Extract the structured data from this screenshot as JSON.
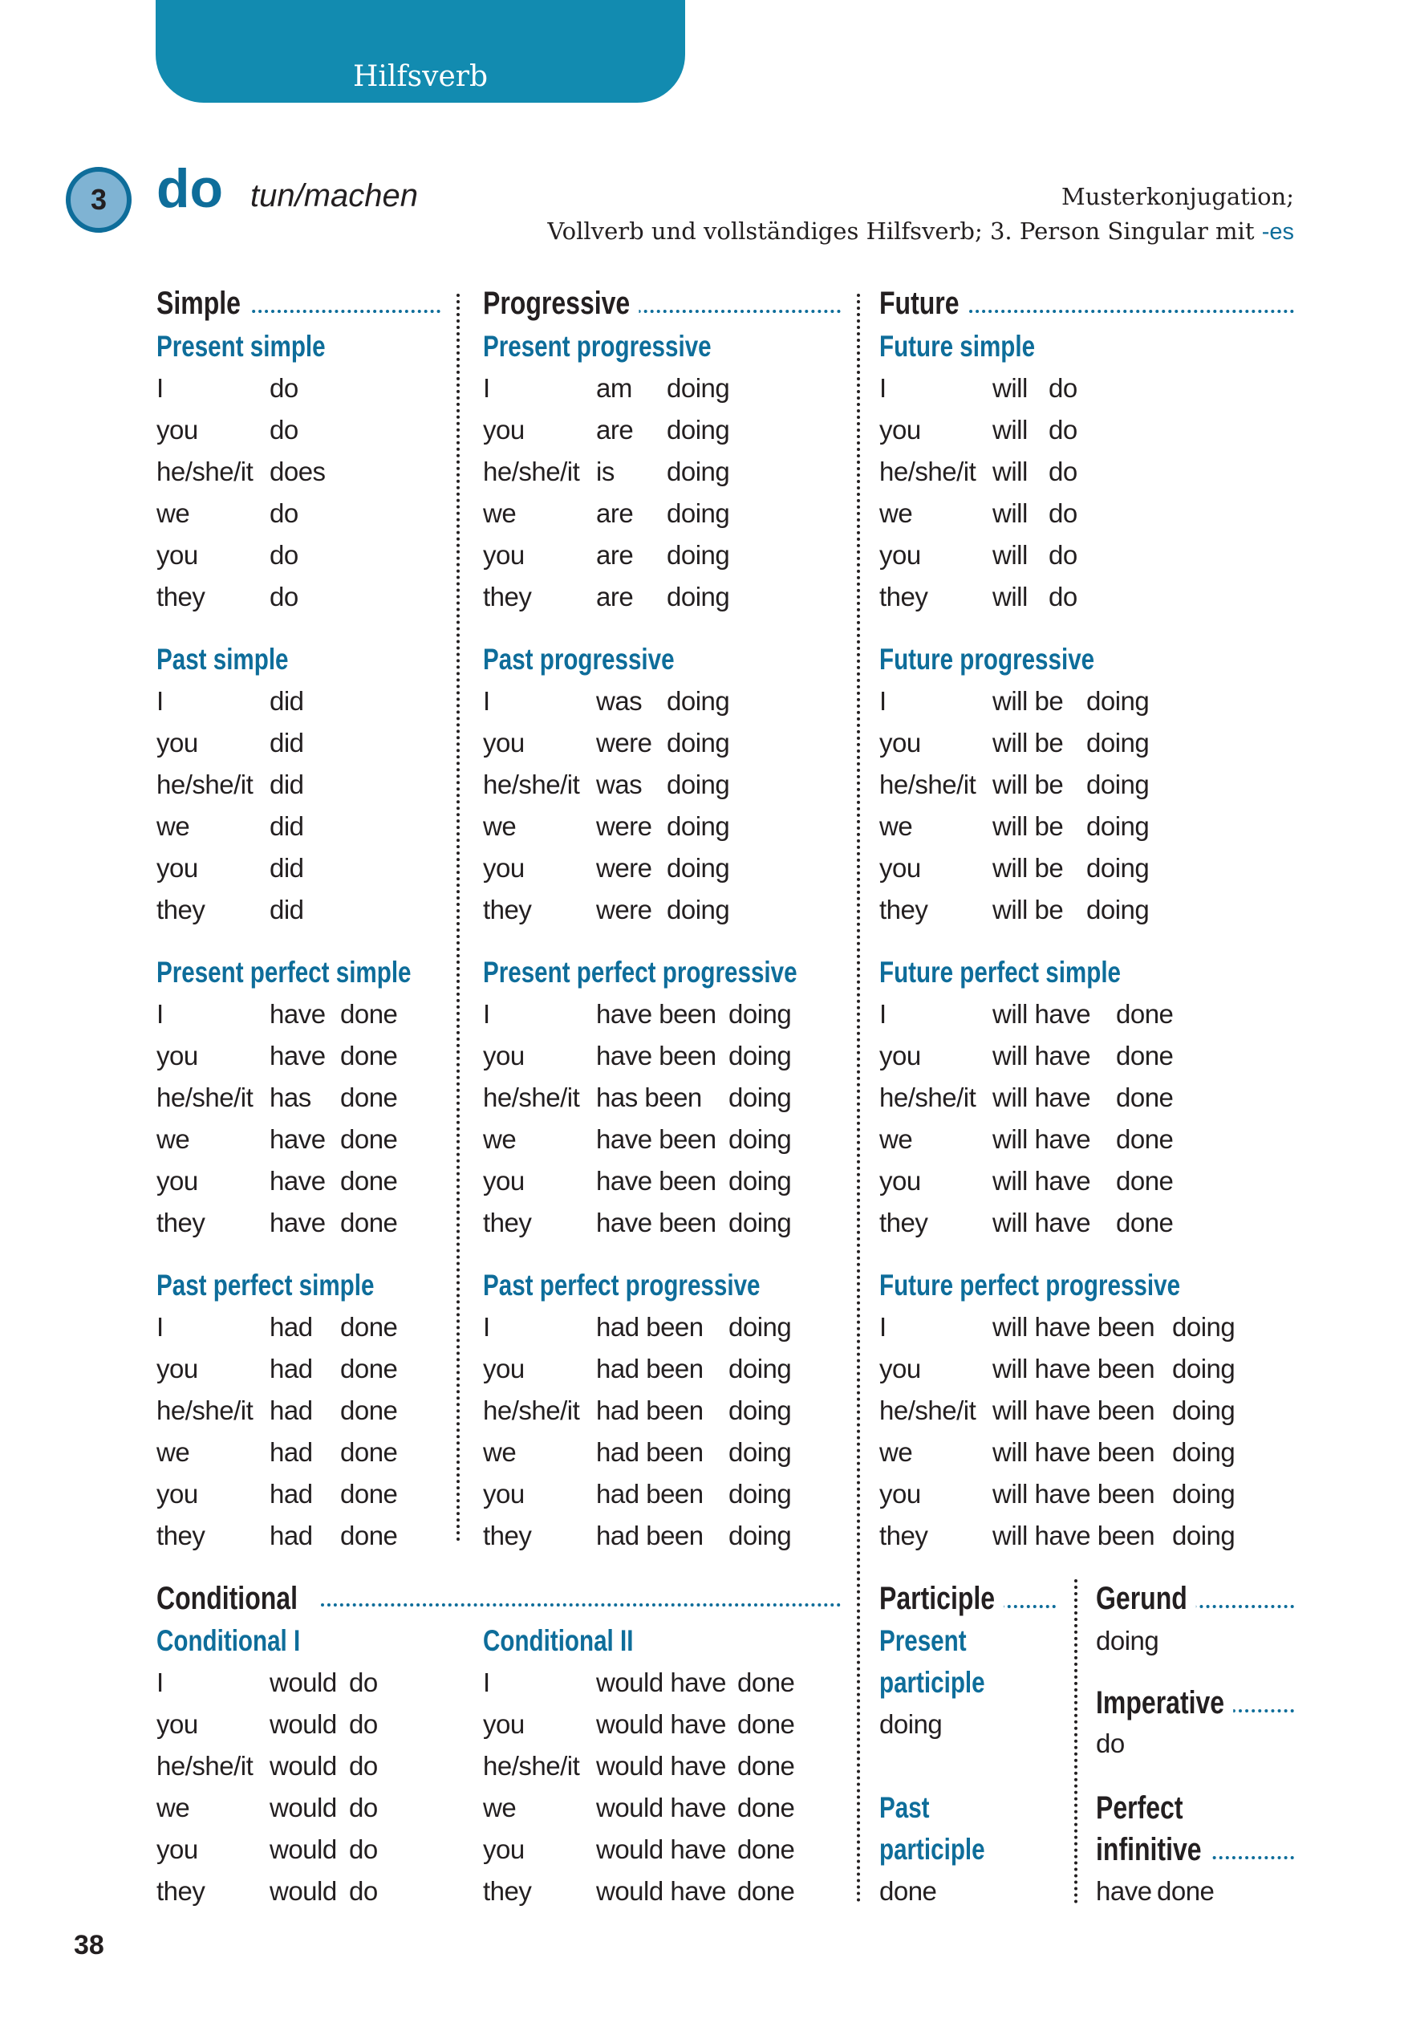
{
  "tab_label": "Hilfsverb",
  "entry": {
    "number": "3",
    "verb": "do",
    "translation": "tun/machen",
    "description_line1": "Musterkonjugation;",
    "description_line2": "Vollverb und vollständiges Hilfsverb; 3. Person Singular mit ",
    "description_suffix": "-es"
  },
  "colors": {
    "accent": "#128bb0",
    "text_blue": "#0e6d9a",
    "text": "#231f20"
  },
  "columns": [
    {
      "title": "Simple",
      "sections": [
        {
          "id": "present-simple",
          "heading": "Present simple",
          "rows": [
            {
              "cells": [
                "I",
                "do"
              ]
            },
            {
              "cells": [
                "you",
                "do"
              ]
            },
            {
              "cells": [
                "he/she/it",
                "does"
              ],
              "blue": [
                1
              ]
            },
            {
              "cells": [
                "we",
                "do"
              ]
            },
            {
              "cells": [
                "you",
                "do"
              ]
            },
            {
              "cells": [
                "they",
                "do"
              ]
            }
          ]
        },
        {
          "id": "past-simple",
          "heading": "Past simple",
          "rows": [
            {
              "cells": [
                "I",
                "did"
              ],
              "blue": [
                1
              ]
            },
            {
              "cells": [
                "you",
                "did"
              ],
              "blue": [
                1
              ]
            },
            {
              "cells": [
                "he/she/it",
                "did"
              ],
              "blue": [
                1
              ]
            },
            {
              "cells": [
                "we",
                "did"
              ],
              "blue": [
                1
              ]
            },
            {
              "cells": [
                "you",
                "did"
              ],
              "blue": [
                1
              ]
            },
            {
              "cells": [
                "they",
                "did"
              ],
              "blue": [
                1
              ]
            }
          ]
        },
        {
          "id": "present-perfect-simple",
          "heading": "Present perfect simple",
          "rows": [
            {
              "cells": [
                "I",
                "have",
                "done"
              ],
              "blue": [
                2
              ]
            },
            {
              "cells": [
                "you",
                "have",
                "done"
              ],
              "blue": [
                2
              ]
            },
            {
              "cells": [
                "he/she/it",
                "has",
                "done"
              ],
              "blue": [
                2
              ]
            },
            {
              "cells": [
                "we",
                "have",
                "done"
              ],
              "blue": [
                2
              ]
            },
            {
              "cells": [
                "you",
                "have",
                "done"
              ],
              "blue": [
                2
              ]
            },
            {
              "cells": [
                "they",
                "have",
                "done"
              ],
              "blue": [
                2
              ]
            }
          ]
        },
        {
          "id": "past-perfect-simple",
          "heading": "Past perfect simple",
          "rows": [
            {
              "cells": [
                "I",
                "had",
                "done"
              ],
              "blue": [
                2
              ]
            },
            {
              "cells": [
                "you",
                "had",
                "done"
              ],
              "blue": [
                2
              ]
            },
            {
              "cells": [
                "he/she/it",
                "had",
                "done"
              ],
              "blue": [
                2
              ]
            },
            {
              "cells": [
                "we",
                "had",
                "done"
              ],
              "blue": [
                2
              ]
            },
            {
              "cells": [
                "you",
                "had",
                "done"
              ],
              "blue": [
                2
              ]
            },
            {
              "cells": [
                "they",
                "had",
                "done"
              ],
              "blue": [
                2
              ]
            }
          ]
        }
      ]
    },
    {
      "title": "Progressive",
      "sections": [
        {
          "id": "present-progressive",
          "heading": "Present progressive",
          "rows": [
            {
              "cells": [
                "I",
                "am",
                "doing"
              ]
            },
            {
              "cells": [
                "you",
                "are",
                "doing"
              ]
            },
            {
              "cells": [
                "he/she/it",
                "is",
                "doing"
              ]
            },
            {
              "cells": [
                "we",
                "are",
                "doing"
              ]
            },
            {
              "cells": [
                "you",
                "are",
                "doing"
              ]
            },
            {
              "cells": [
                "they",
                "are",
                "doing"
              ]
            }
          ]
        },
        {
          "id": "past-progressive",
          "heading": "Past progressive",
          "rows": [
            {
              "cells": [
                "I",
                "was",
                "doing"
              ]
            },
            {
              "cells": [
                "you",
                "were",
                "doing"
              ]
            },
            {
              "cells": [
                "he/she/it",
                "was",
                "doing"
              ]
            },
            {
              "cells": [
                "we",
                "were",
                "doing"
              ]
            },
            {
              "cells": [
                "you",
                "were",
                "doing"
              ]
            },
            {
              "cells": [
                "they",
                "were",
                "doing"
              ]
            }
          ]
        },
        {
          "id": "present-perfect-progressive",
          "heading": "Present perfect progressive",
          "rows": [
            {
              "cells": [
                "I",
                "have been",
                "doing"
              ]
            },
            {
              "cells": [
                "you",
                "have been",
                "doing"
              ]
            },
            {
              "cells": [
                "he/she/it",
                "has been",
                "doing"
              ]
            },
            {
              "cells": [
                "we",
                "have been",
                "doing"
              ]
            },
            {
              "cells": [
                "you",
                "have been",
                "doing"
              ]
            },
            {
              "cells": [
                "they",
                "have been",
                "doing"
              ]
            }
          ]
        },
        {
          "id": "past-perfect-progressive",
          "heading": "Past perfect progressive",
          "rows": [
            {
              "cells": [
                "I",
                "had been",
                "doing"
              ]
            },
            {
              "cells": [
                "you",
                "had been",
                "doing"
              ]
            },
            {
              "cells": [
                "he/she/it",
                "had been",
                "doing"
              ]
            },
            {
              "cells": [
                "we",
                "had been",
                "doing"
              ]
            },
            {
              "cells": [
                "you",
                "had been",
                "doing"
              ]
            },
            {
              "cells": [
                "they",
                "had been",
                "doing"
              ]
            }
          ]
        }
      ]
    },
    {
      "title": "Future",
      "sections": [
        {
          "id": "future-simple",
          "heading": "Future simple",
          "rows": [
            {
              "cells": [
                "I",
                "will",
                "do"
              ]
            },
            {
              "cells": [
                "you",
                "will",
                "do"
              ]
            },
            {
              "cells": [
                "he/she/it",
                "will",
                "do"
              ]
            },
            {
              "cells": [
                "we",
                "will",
                "do"
              ]
            },
            {
              "cells": [
                "you",
                "will",
                "do"
              ]
            },
            {
              "cells": [
                "they",
                "will",
                "do"
              ]
            }
          ]
        },
        {
          "id": "future-progressive",
          "heading": "Future progressive",
          "rows": [
            {
              "cells": [
                "I",
                "will be",
                "doing"
              ]
            },
            {
              "cells": [
                "you",
                "will be",
                "doing"
              ]
            },
            {
              "cells": [
                "he/she/it",
                "will be",
                "doing"
              ]
            },
            {
              "cells": [
                "we",
                "will be",
                "doing"
              ]
            },
            {
              "cells": [
                "you",
                "will be",
                "doing"
              ]
            },
            {
              "cells": [
                "they",
                "will be",
                "doing"
              ]
            }
          ]
        },
        {
          "id": "future-perfect-simple",
          "heading": "Future perfect simple",
          "rows": [
            {
              "cells": [
                "I",
                "will have",
                "done"
              ],
              "blue": [
                2
              ]
            },
            {
              "cells": [
                "you",
                "will have",
                "done"
              ],
              "blue": [
                2
              ]
            },
            {
              "cells": [
                "he/she/it",
                "will have",
                "done"
              ],
              "blue": [
                2
              ]
            },
            {
              "cells": [
                "we",
                "will have",
                "done"
              ],
              "blue": [
                2
              ]
            },
            {
              "cells": [
                "you",
                "will have",
                "done"
              ],
              "blue": [
                2
              ]
            },
            {
              "cells": [
                "they",
                "will have",
                "done"
              ],
              "blue": [
                2
              ]
            }
          ]
        },
        {
          "id": "future-perfect-progressive",
          "heading": "Future perfect progressive",
          "rows": [
            {
              "cells": [
                "I",
                "will have been",
                "doing"
              ]
            },
            {
              "cells": [
                "you",
                "will have been",
                "doing"
              ]
            },
            {
              "cells": [
                "he/she/it",
                "will have been",
                "doing"
              ]
            },
            {
              "cells": [
                "we",
                "will have been",
                "doing"
              ]
            },
            {
              "cells": [
                "you",
                "will have been",
                "doing"
              ]
            },
            {
              "cells": [
                "they",
                "will have been",
                "doing"
              ]
            }
          ]
        }
      ]
    }
  ],
  "conditional": {
    "title": "Conditional",
    "sections": [
      {
        "id": "conditional-1",
        "heading": "Conditional I",
        "rows": [
          {
            "cells": [
              "I",
              "would",
              "do"
            ]
          },
          {
            "cells": [
              "you",
              "would",
              "do"
            ]
          },
          {
            "cells": [
              "he/she/it",
              "would",
              "do"
            ]
          },
          {
            "cells": [
              "we",
              "would",
              "do"
            ]
          },
          {
            "cells": [
              "you",
              "would",
              "do"
            ]
          },
          {
            "cells": [
              "they",
              "would",
              "do"
            ]
          }
        ]
      },
      {
        "id": "conditional-2",
        "heading": "Conditional II",
        "rows": [
          {
            "cells": [
              "I",
              "would have",
              "done"
            ],
            "blue": [
              2
            ]
          },
          {
            "cells": [
              "you",
              "would have",
              "done"
            ],
            "blue": [
              2
            ]
          },
          {
            "cells": [
              "he/she/it",
              "would have",
              "done"
            ],
            "blue": [
              2
            ]
          },
          {
            "cells": [
              "we",
              "would have",
              "done"
            ],
            "blue": [
              2
            ]
          },
          {
            "cells": [
              "you",
              "would have",
              "done"
            ],
            "blue": [
              2
            ]
          },
          {
            "cells": [
              "they",
              "would have",
              "done"
            ],
            "blue": [
              2
            ]
          }
        ]
      }
    ]
  },
  "participle": {
    "title": "Participle",
    "present_line1": "Present",
    "present_line2": "participle",
    "present_value": "doing",
    "past_line1": "Past",
    "past_line2": "participle",
    "past_value": "done"
  },
  "gerund": {
    "title": "Gerund",
    "value": "doing"
  },
  "imperative": {
    "title": "Imperative",
    "value": "do"
  },
  "perfect_infinitive": {
    "title_line1": "Perfect",
    "title_line2": "infinitive",
    "value_aux": "have",
    "value_main": "done"
  },
  "page_number": "38"
}
